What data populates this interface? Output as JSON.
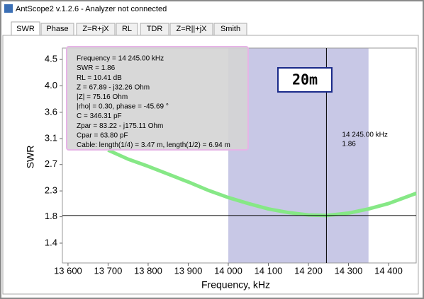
{
  "window": {
    "title": "AntScope2 v.1.2.6 - Analyzer not connected",
    "tabs": [
      "SWR",
      "Phase",
      "Z=R+jX",
      "RL",
      "TDR",
      "Z=R||+jX",
      "Smith"
    ]
  },
  "chart_data": {
    "type": "line",
    "x_label": "Frequency, kHz",
    "y_label": "SWR",
    "x": [
      13700,
      13750,
      13800,
      13850,
      13900,
      13950,
      14000,
      14050,
      14100,
      14150,
      14200,
      14245,
      14300,
      14350,
      14400,
      14469
    ],
    "values": [
      2.95,
      2.8,
      2.68,
      2.55,
      2.42,
      2.28,
      2.16,
      2.06,
      1.97,
      1.91,
      1.87,
      1.86,
      1.9,
      1.97,
      2.06,
      2.23
    ],
    "color": "#86e886",
    "xlim": [
      13586,
      14469
    ],
    "ylim": [
      1.07,
      4.65
    ],
    "xticks": [
      {
        "value": 13600,
        "label": "13 600"
      },
      {
        "value": 13700,
        "label": "13 700"
      },
      {
        "value": 13800,
        "label": "13 800"
      },
      {
        "value": 13900,
        "label": "13 900"
      },
      {
        "value": 14000,
        "label": "14 000"
      },
      {
        "value": 14100,
        "label": "14 100"
      },
      {
        "value": 14200,
        "label": "14 200"
      },
      {
        "value": 14300,
        "label": "14 300"
      },
      {
        "value": 14400,
        "label": "14 400"
      }
    ],
    "yticks": [
      {
        "value": 1.4,
        "label": "1.4"
      },
      {
        "value": 1.84,
        "label": "1.8"
      },
      {
        "value": 2.27,
        "label": "2.3"
      },
      {
        "value": 2.71,
        "label": "2.7"
      },
      {
        "value": 3.14,
        "label": "3.1"
      },
      {
        "value": 3.58,
        "label": "3.6"
      },
      {
        "value": 4.02,
        "label": "4.0"
      },
      {
        "value": 4.46,
        "label": "4.5"
      }
    ],
    "band": {
      "range": [
        14000,
        14350
      ],
      "label": "20m",
      "color": "#c8c8e6"
    },
    "marker": {
      "frequency": 14245,
      "frequency_label": "14 245.00 kHz",
      "swr": 1.86
    },
    "info": [
      "Frequency = 14 245.00 kHz",
      "SWR = 1.86",
      "RL = 10.41 dB",
      "Z = 67.89 - j32.26 Ohm",
      "|Z| = 75.16 Ohm",
      "|rho| = 0.30, phase = -45.69 °",
      "C = 346.31 pF",
      "Zpar = 83.22 - j175.11 Ohm",
      "Cpar = 63.80 pF",
      "Cable: length(1/4) = 3.47 m, length(1/2) = 6.94 m"
    ]
  }
}
